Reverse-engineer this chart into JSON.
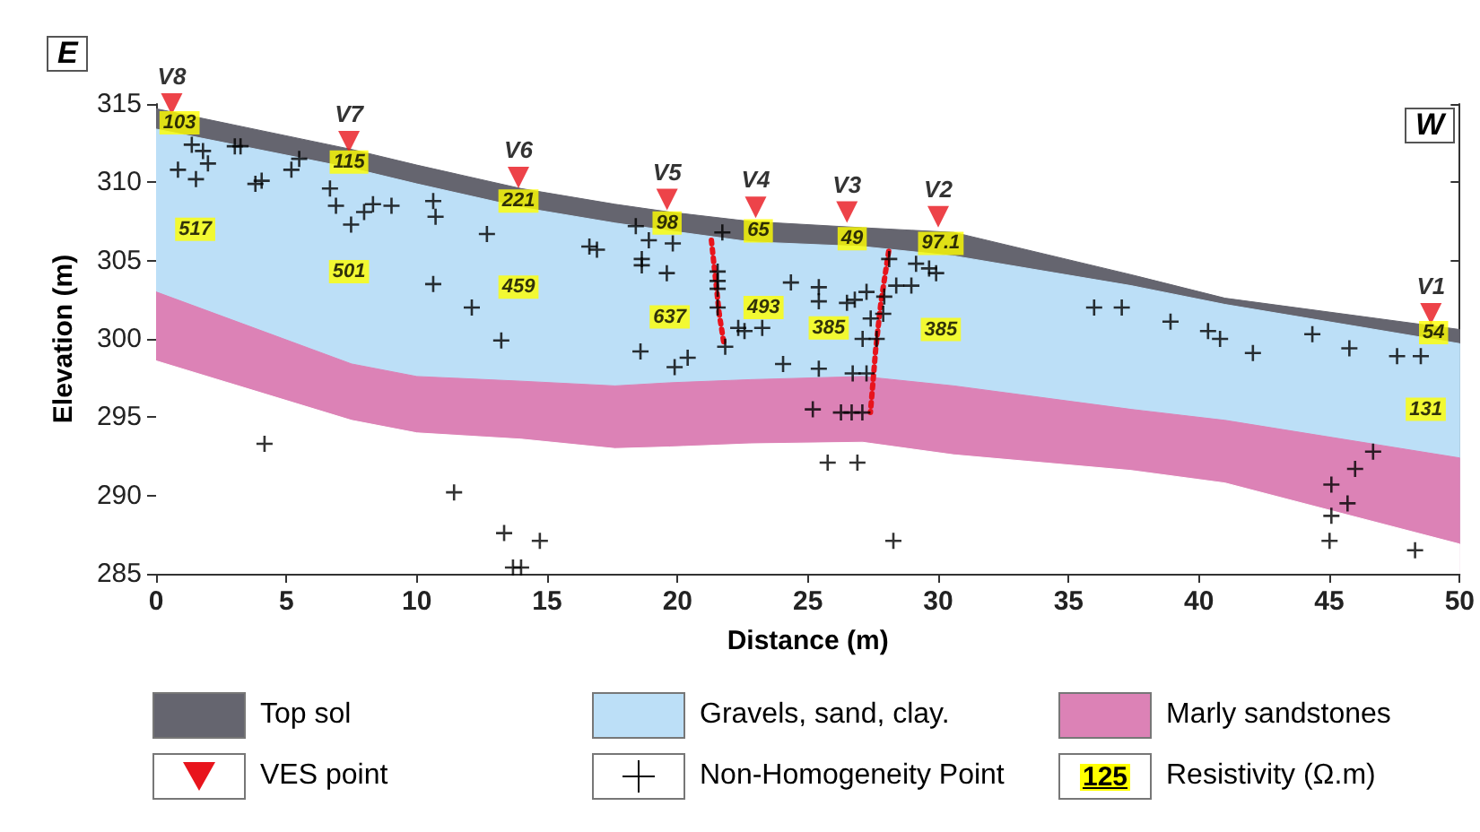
{
  "chart_data": {
    "type": "area",
    "xlabel": "Distance (m)",
    "ylabel": "Elevation (m)",
    "xlim": [
      0,
      50
    ],
    "xticks": [
      0,
      5,
      10,
      15,
      20,
      25,
      30,
      35,
      40,
      45,
      50
    ],
    "ylim": [
      285,
      315
    ],
    "yticks": [
      285,
      290,
      295,
      300,
      305,
      310,
      315
    ],
    "grid": false,
    "legend": "bottom",
    "x": [
      0,
      7.5,
      10,
      14,
      17.6,
      19.7,
      22.8,
      27.1,
      30.6,
      37.4,
      41,
      50
    ],
    "annotations": [
      "E",
      "W",
      "125",
      "Resistivity (Ω.m)",
      {
        "text": "103",
        "x": 0.9,
        "y": 313.8
      },
      {
        "text": "115",
        "x": 7.4,
        "y": 311.3
      },
      {
        "text": "221",
        "x": 13.9,
        "y": 308.8
      },
      {
        "text": "98",
        "x": 19.6,
        "y": 307.4
      },
      {
        "text": "65",
        "x": 23.1,
        "y": 306.9
      },
      {
        "text": "49",
        "x": 26.7,
        "y": 306.4
      },
      {
        "text": "97.1",
        "x": 30.1,
        "y": 306.1
      },
      {
        "text": "54",
        "x": 49.0,
        "y": 300.4
      },
      {
        "text": "517",
        "x": 1.5,
        "y": 307.0
      },
      {
        "text": "501",
        "x": 7.4,
        "y": 304.3
      },
      {
        "text": "459",
        "x": 13.9,
        "y": 303.3
      },
      {
        "text": "637",
        "x": 19.7,
        "y": 301.4
      },
      {
        "text": "493",
        "x": 23.3,
        "y": 302.0
      },
      {
        "text": "385",
        "x": 25.8,
        "y": 300.7
      },
      {
        "text": "385",
        "x": 30.1,
        "y": 300.6
      },
      {
        "text": "131",
        "x": 48.7,
        "y": 295.5
      }
    ],
    "series": [
      {
        "name": "Top sol",
        "color": "#65656f",
        "values": [
          314.7,
          312.1,
          311.1,
          309.6,
          308.6,
          308.1,
          307.5,
          307.1,
          306.8,
          304.1,
          302.6,
          300.6
        ]
      },
      {
        "name": "Gravels, sand, clay.",
        "color": "#bcdff7",
        "values": [
          313.4,
          310.9,
          309.9,
          308.4,
          307.4,
          306.9,
          306.2,
          305.9,
          305.3,
          303.4,
          302.2,
          299.7
        ]
      },
      {
        "name": "Marly sandstones",
        "color": "#dc82b6",
        "values": [
          303.0,
          298.4,
          297.6,
          297.3,
          297.0,
          297.2,
          297.4,
          297.6,
          297.0,
          295.5,
          294.8,
          292.4
        ]
      },
      {
        "color": "#ffffff",
        "values": [
          298.6,
          294.8,
          294.0,
          293.6,
          293.0,
          293.1,
          293.3,
          293.4,
          292.6,
          291.6,
          290.8,
          286.9
        ]
      },
      {
        "type": "line",
        "color": "#e8141c",
        "line_style": "dotted",
        "marker": "none",
        "x": [
          21.3,
          21.6,
          21.8
        ],
        "values": [
          306.3,
          301.6,
          299.5
        ]
      },
      {
        "type": "line",
        "color": "#e8141c",
        "line_style": "dotted",
        "marker": "none",
        "x": [
          28.1,
          27.8,
          27.6,
          27.4
        ],
        "values": [
          305.6,
          302.3,
          299.3,
          295.3
        ]
      },
      {
        "name": "Non-Homogeneity Point",
        "type": "scatter",
        "color": "#000000",
        "marker": "cross",
        "x": [
          1.37,
          1.8,
          1.99,
          0.84,
          1.53,
          3.02,
          3.24,
          3.81,
          4.05,
          5.19,
          5.49,
          6.67,
          6.9,
          7.48,
          7.98,
          8.32,
          9.03,
          10.63,
          10.72,
          10.63,
          12.11,
          13.24,
          12.69,
          16.62,
          16.91,
          18.4,
          18.9,
          19.82,
          18.63,
          18.63,
          19.59,
          18.58,
          19.89,
          20.39,
          21.72,
          21.54,
          21.54,
          21.54,
          21.54,
          21.83,
          22.33,
          22.57,
          4.16,
          11.43,
          13.35,
          14.72,
          13.69,
          14.0,
          23.25,
          24.35,
          25.42,
          25.42,
          26.5,
          26.8,
          27.25,
          27.93,
          27.89,
          27.41,
          27.1,
          27.64,
          28.12,
          28.39,
          28.97,
          29.15,
          29.65,
          29.92,
          24.05,
          25.42,
          26.72,
          27.25,
          25.19,
          26.27,
          26.68,
          27.09,
          25.76,
          26.9,
          28.28,
          35.98,
          37.04,
          38.91,
          40.35,
          40.81,
          42.07,
          44.35,
          45.77,
          47.6,
          48.51,
          46.68,
          45.99,
          45.08,
          45.7,
          45.08,
          45.01,
          48.29
        ],
        "values": [
          312.4,
          312.0,
          311.2,
          310.8,
          310.2,
          312.3,
          312.3,
          309.9,
          310.1,
          310.8,
          311.5,
          309.6,
          308.5,
          307.3,
          308.1,
          308.6,
          308.5,
          308.8,
          307.8,
          303.5,
          302.0,
          299.9,
          306.7,
          305.9,
          305.7,
          307.2,
          306.3,
          306.1,
          305.1,
          304.7,
          304.2,
          299.2,
          298.2,
          298.8,
          306.8,
          304.3,
          303.7,
          303.2,
          302.0,
          299.5,
          300.7,
          300.5,
          293.3,
          290.2,
          287.6,
          287.1,
          285.4,
          285.4,
          300.7,
          303.6,
          303.3,
          302.4,
          302.3,
          302.5,
          303.0,
          302.7,
          301.6,
          301.3,
          300.0,
          300.0,
          305.1,
          303.4,
          303.4,
          304.8,
          304.5,
          304.2,
          298.4,
          298.1,
          297.8,
          297.8,
          295.5,
          295.3,
          295.3,
          295.3,
          292.1,
          292.1,
          287.1,
          302.0,
          302.0,
          301.1,
          300.5,
          300.0,
          299.1,
          300.3,
          299.4,
          298.9,
          298.9,
          292.8,
          291.7,
          290.7,
          289.5,
          288.7,
          287.1,
          286.5
        ]
      },
      {
        "name": "VES point",
        "type": "scatter",
        "color": "#e8141c",
        "marker": "triangle",
        "x": [
          0.6,
          7.4,
          13.9,
          19.6,
          23.0,
          26.5,
          30.0,
          48.9
        ],
        "values": [
          315.0,
          312.6,
          310.3,
          308.9,
          308.4,
          308.1,
          307.8,
          301.6
        ],
        "value_labels": [
          "V8",
          "V7",
          "V6",
          "V5",
          "V4",
          "V3",
          "V2",
          "V1"
        ]
      }
    ]
  }
}
